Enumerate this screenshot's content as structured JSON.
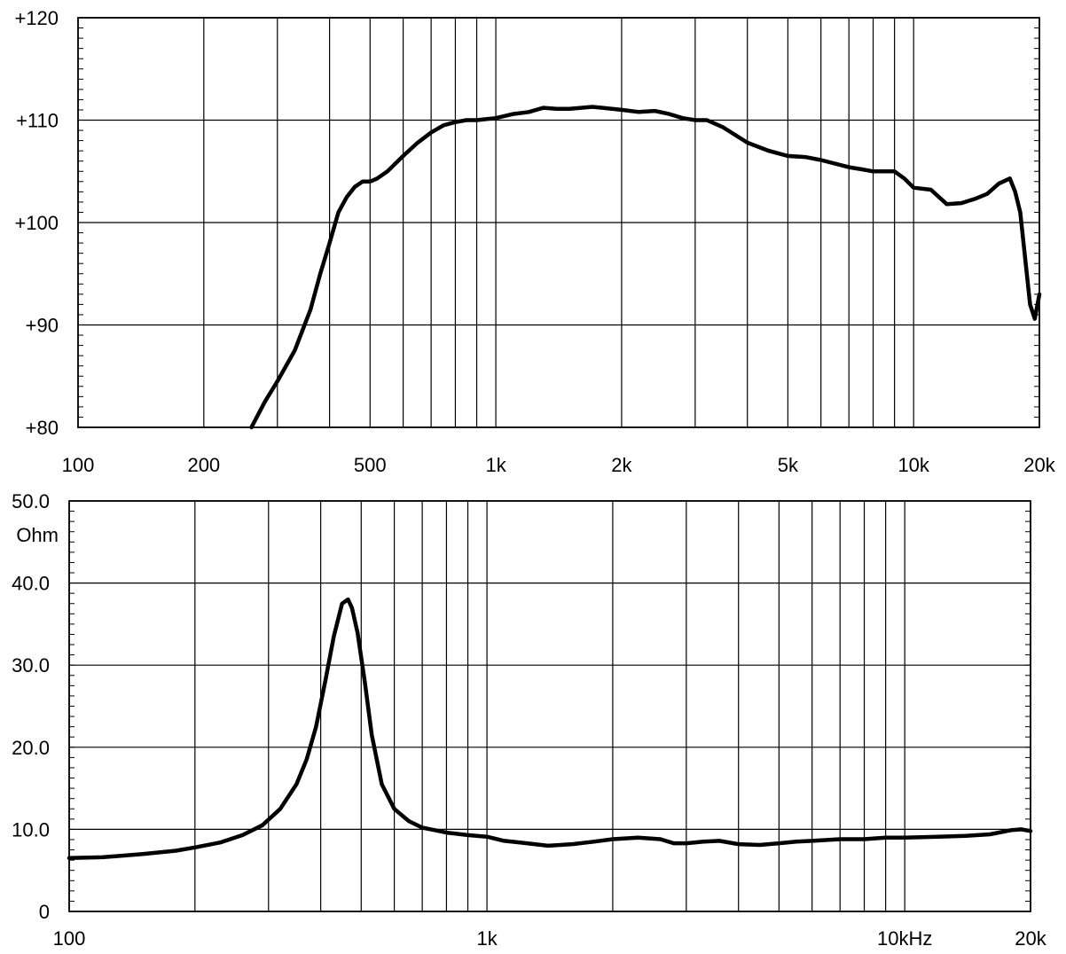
{
  "chart_data": [
    {
      "type": "line",
      "title": "",
      "xlabel": "",
      "ylabel": "",
      "x_scale": "log",
      "xlim": [
        100,
        20000
      ],
      "ylim": [
        80,
        120
      ],
      "grid": true,
      "x_tick_labels": [
        {
          "value": 100,
          "label": "100"
        },
        {
          "value": 200,
          "label": "200"
        },
        {
          "value": 500,
          "label": "500"
        },
        {
          "value": 1000,
          "label": "1k"
        },
        {
          "value": 2000,
          "label": "2k"
        },
        {
          "value": 5000,
          "label": "5k"
        },
        {
          "value": 10000,
          "label": "10k"
        },
        {
          "value": 20000,
          "label": "20k"
        }
      ],
      "y_tick_labels": [
        {
          "value": 120,
          "label": "+120"
        },
        {
          "value": 110,
          "label": "+110"
        },
        {
          "value": 100,
          "label": "+100"
        },
        {
          "value": 90,
          "label": "+90"
        },
        {
          "value": 80,
          "label": "+80"
        }
      ],
      "series": [
        {
          "x": [
            260,
            280,
            300,
            330,
            360,
            380,
            400,
            420,
            440,
            460,
            480,
            500,
            520,
            550,
            600,
            650,
            700,
            750,
            800,
            850,
            900,
            1000,
            1100,
            1200,
            1300,
            1400,
            1500,
            1600,
            1700,
            1800,
            2000,
            2200,
            2400,
            2600,
            2800,
            3000,
            3200,
            3500,
            4000,
            4500,
            5000,
            5500,
            6000,
            7000,
            7500,
            8000,
            9000,
            9500,
            10000,
            11000,
            12000,
            13000,
            14000,
            15000,
            16000,
            17000,
            17500,
            18000,
            19000,
            19500,
            20000
          ],
          "values": [
            80,
            82.5,
            84.5,
            87.5,
            91.5,
            95,
            98,
            101,
            102.5,
            103.5,
            104,
            104,
            104.3,
            105,
            106.5,
            107.8,
            108.8,
            109.5,
            109.8,
            110,
            110,
            110.2,
            110.6,
            110.8,
            111.2,
            111.1,
            111.1,
            111.2,
            111.3,
            111.2,
            111,
            110.8,
            110.9,
            110.6,
            110.2,
            110,
            110,
            109.3,
            107.8,
            107,
            106.5,
            106.4,
            106.1,
            105.4,
            105.2,
            105,
            105,
            104.3,
            103.4,
            103.2,
            101.8,
            101.9,
            102.3,
            102.8,
            103.8,
            104.3,
            103,
            101,
            92,
            90.6,
            93
          ]
        }
      ]
    },
    {
      "type": "line",
      "title": "",
      "xlabel": "",
      "ylabel": "Ohm",
      "x_scale": "log",
      "xlim": [
        100,
        20000
      ],
      "ylim": [
        0,
        50
      ],
      "grid": true,
      "x_tick_labels": [
        {
          "value": 100,
          "label": "100"
        },
        {
          "value": 1000,
          "label": "1k"
        },
        {
          "value": 10000,
          "label": "10kHz"
        },
        {
          "value": 20000,
          "label": "20k"
        }
      ],
      "y_tick_labels": [
        {
          "value": 50,
          "label": "50.0"
        },
        {
          "value": 40,
          "label": "40.0"
        },
        {
          "value": 30,
          "label": "30.0"
        },
        {
          "value": 20,
          "label": "20.0"
        },
        {
          "value": 10,
          "label": "10.0"
        },
        {
          "value": 0,
          "label": "0"
        }
      ],
      "series": [
        {
          "x": [
            100,
            120,
            150,
            180,
            200,
            230,
            260,
            290,
            320,
            350,
            370,
            390,
            410,
            430,
            450,
            465,
            475,
            490,
            510,
            530,
            560,
            600,
            650,
            700,
            750,
            800,
            900,
            1000,
            1100,
            1200,
            1400,
            1600,
            1800,
            2000,
            2300,
            2600,
            2800,
            3000,
            3300,
            3600,
            4000,
            4500,
            5000,
            5500,
            6000,
            7000,
            8000,
            9000,
            10000,
            12000,
            14000,
            16000,
            18000,
            19000,
            20000
          ],
          "values": [
            6.5,
            6.6,
            7,
            7.4,
            7.8,
            8.4,
            9.3,
            10.5,
            12.5,
            15.5,
            18.5,
            22.5,
            28,
            33.5,
            37.5,
            38,
            37,
            34,
            28,
            21.5,
            15.5,
            12.5,
            11,
            10.2,
            9.9,
            9.6,
            9.3,
            9.1,
            8.6,
            8.4,
            8,
            8.2,
            8.5,
            8.8,
            9,
            8.8,
            8.3,
            8.3,
            8.5,
            8.6,
            8.2,
            8.1,
            8.3,
            8.5,
            8.6,
            8.8,
            8.8,
            9,
            9,
            9.1,
            9.2,
            9.4,
            9.9,
            10,
            9.8
          ]
        }
      ]
    }
  ]
}
